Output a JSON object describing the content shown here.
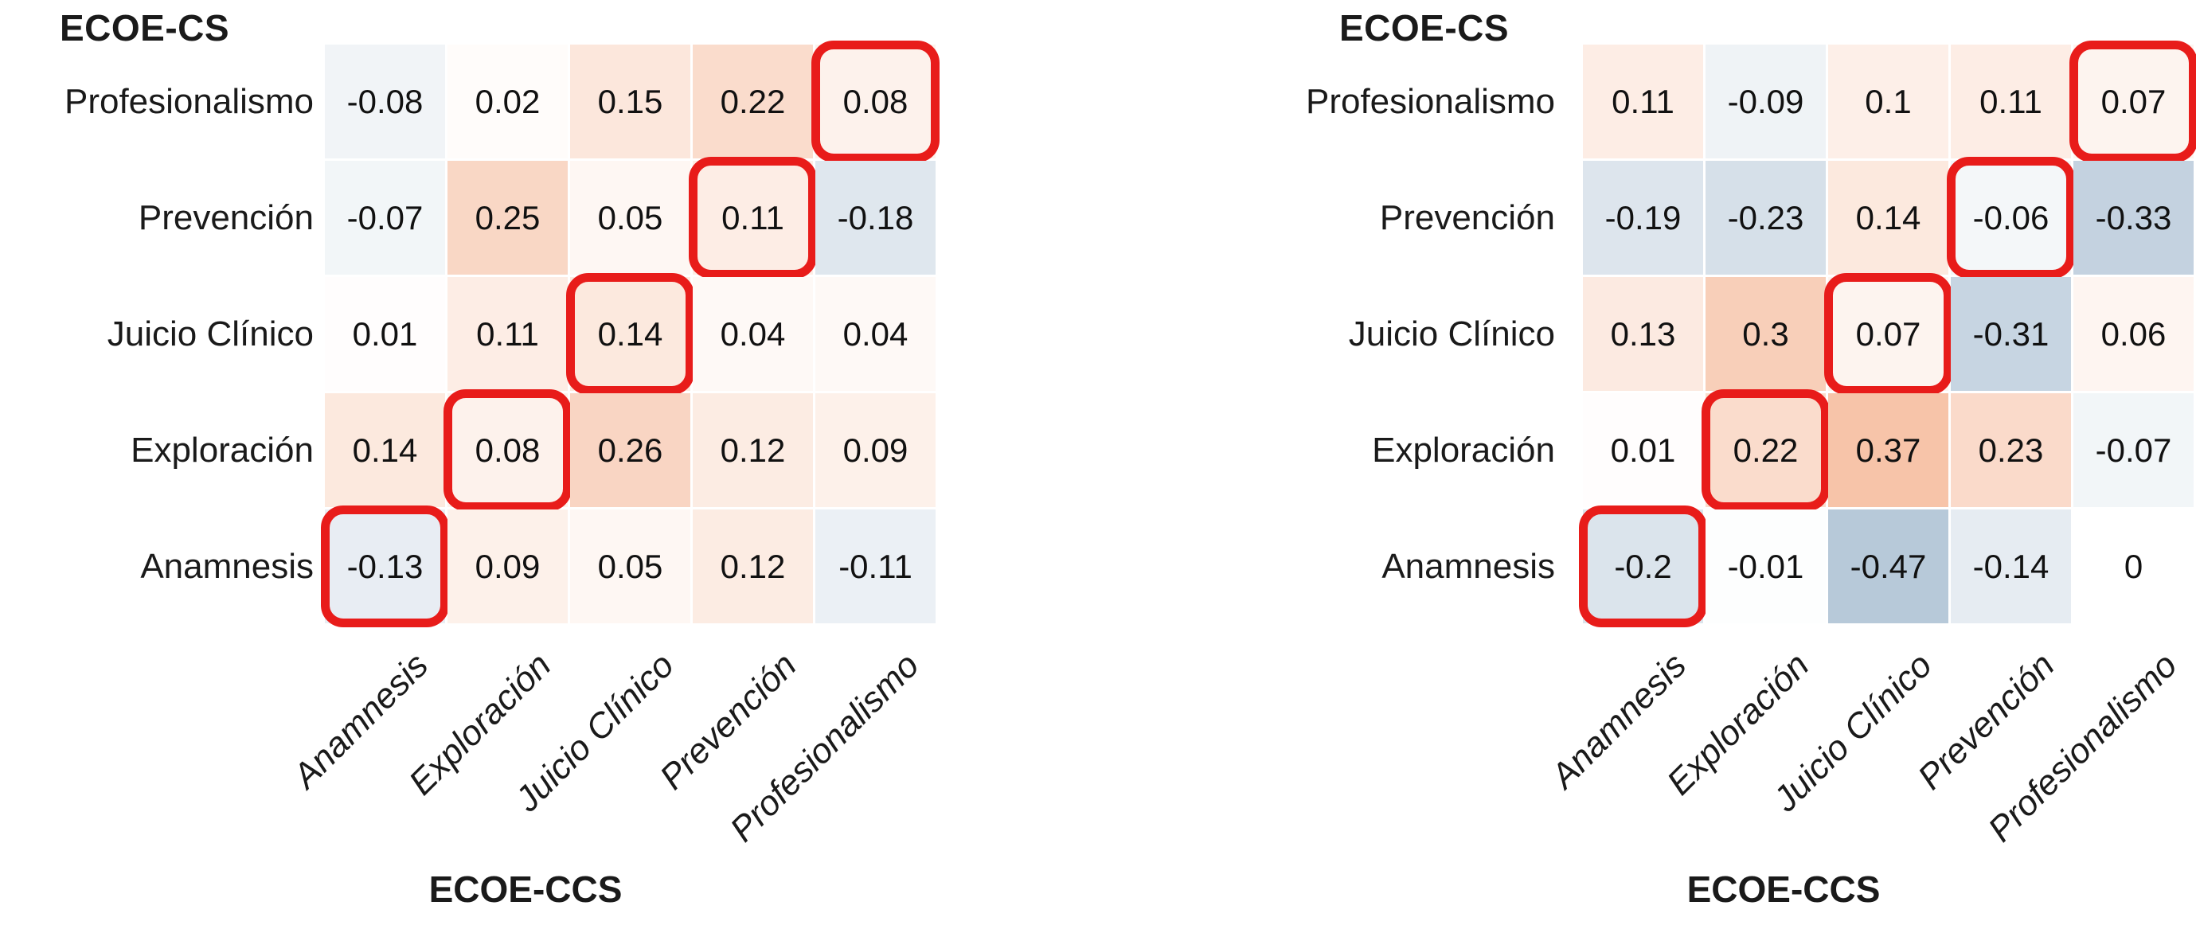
{
  "style": {
    "highlight_color": "#e81c1a",
    "positive_max_color": "#f6bfa2",
    "negative_max_color": "#b7c9d9",
    "zero_color": "#ffffff",
    "text_color": "#111111",
    "color_abs_limit": 0.4
  },
  "chart_data": [
    {
      "type": "heatmap",
      "title": "ECOE-CS",
      "ylabel": "ECOE-CS",
      "xlabel": "ECOE-CCS",
      "rows": [
        "Profesionalismo",
        "Prevención",
        "Juicio Clínico",
        "Exploración",
        "Anamnesis"
      ],
      "columns": [
        "Anamnesis",
        "Exploración",
        "Juicio Clínico",
        "Prevención",
        "Profesionalismo"
      ],
      "values": [
        [
          -0.08,
          0.02,
          0.15,
          0.22,
          0.08
        ],
        [
          -0.07,
          0.25,
          0.05,
          0.11,
          -0.18
        ],
        [
          0.01,
          0.11,
          0.14,
          0.04,
          0.04
        ],
        [
          0.14,
          0.08,
          0.26,
          0.12,
          0.09
        ],
        [
          -0.13,
          0.09,
          0.05,
          0.12,
          -0.11
        ]
      ],
      "highlighted_cells": [
        [
          0,
          4
        ],
        [
          1,
          3
        ],
        [
          2,
          2
        ],
        [
          3,
          1
        ],
        [
          4,
          0
        ]
      ],
      "color_range": [
        -0.4,
        0.4
      ],
      "legend": "off",
      "grid": "off"
    },
    {
      "type": "heatmap",
      "title": "ECOE-CS",
      "ylabel": "ECOE-CS",
      "xlabel": "ECOE-CCS",
      "rows": [
        "Profesionalismo",
        "Prevención",
        "Juicio Clínico",
        "Exploración",
        "Anamnesis"
      ],
      "columns": [
        "Anamnesis",
        "Exploración",
        "Juicio Clínico",
        "Prevención",
        "Profesionalismo"
      ],
      "values": [
        [
          0.11,
          -0.09,
          0.1,
          0.11,
          0.07
        ],
        [
          -0.19,
          -0.23,
          0.14,
          -0.06,
          -0.33
        ],
        [
          0.13,
          0.3,
          0.07,
          -0.31,
          0.06
        ],
        [
          0.01,
          0.22,
          0.37,
          0.23,
          -0.07
        ],
        [
          -0.2,
          -0.01,
          -0.47,
          -0.14,
          0
        ]
      ],
      "highlighted_cells": [
        [
          0,
          4
        ],
        [
          1,
          3
        ],
        [
          2,
          2
        ],
        [
          3,
          1
        ],
        [
          4,
          0
        ]
      ],
      "color_range": [
        -0.4,
        0.4
      ],
      "legend": "off",
      "grid": "off"
    }
  ]
}
